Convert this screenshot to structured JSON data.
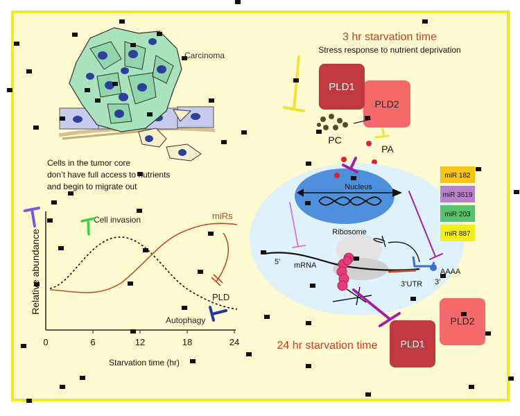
{
  "colors": {
    "background": "#fffbd1",
    "frame": "#f1ea1e",
    "red_text": "#d23a1f",
    "pld1": "#c0393f",
    "pld2": "#f46a6a",
    "nucleus": "#4f90dc",
    "cell": "#dff1fb",
    "mir_curve": "#c44a2c",
    "inhibitor_purple": "#a11fa8",
    "inhibitor_violet": "#7b57e0",
    "inhibitor_green": "#3cd23c",
    "inhibitor_blue": "#1f3aa6",
    "inhibitor_yellow": "#f1e23a"
  },
  "left_panel": {
    "carcinoma_label": "Carcinoma",
    "tumor_text": [
      "Cells in the tumor core",
      "don’t have full access to nutrients",
      "and begin to migrate out"
    ]
  },
  "graph": {
    "y_label": "Relative abundance",
    "x_label": "Starvation time (hr)",
    "x_ticks": [
      "0",
      "6",
      "12",
      "18",
      "24"
    ],
    "labels": {
      "cell_invasion": "Cell invasion",
      "mirs": "miRs",
      "pld": "PLD",
      "autophagy": "Autophagy"
    }
  },
  "right_panel": {
    "title_3hr": "3 hr starvation time",
    "subtitle": "Stress response to nutrient deprivation",
    "pld1": "PLD1",
    "pld2": "PLD2",
    "pc": "PC",
    "pa": "PA",
    "nucleus": "Nucleus",
    "ribosome": "Ribosome",
    "mrna_5": "5’",
    "mrna": "mRNA",
    "utr": "3’UTR",
    "three_prime": "3’",
    "polya": "AAAA",
    "title_24hr": "24 hr starvation time",
    "pld1_bottom": "PLD1",
    "pld2_bottom": "PLD2"
  },
  "mirs": [
    {
      "label": "miR 182",
      "color": "#f5c419"
    },
    {
      "label": "miR 3619",
      "color": "#b783c8"
    },
    {
      "label": "miR 203",
      "color": "#57c26b"
    },
    {
      "label": "miR 887",
      "color": "#f5ee1a"
    }
  ]
}
